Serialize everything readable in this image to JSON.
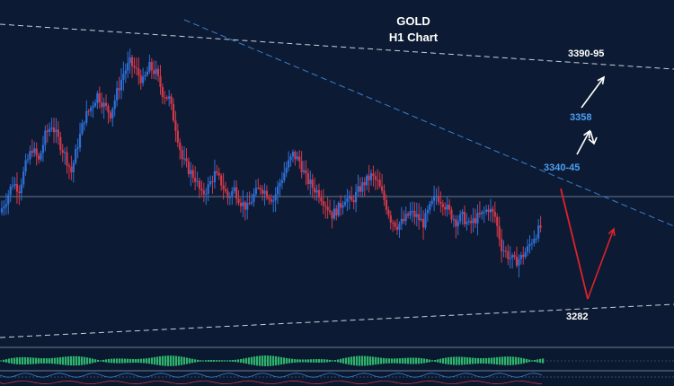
{
  "chart_data": {
    "type": "candlestick",
    "title": "GOLD",
    "subtitle": "H1 Chart",
    "colors": {
      "background": "#0c1b33",
      "bull_candle": "#2e6fd8",
      "bear_candle": "#d2384a",
      "wick": "#b9c4d6",
      "trendline_white": "#c8d0dc",
      "trendline_blue": "#3a7fd0",
      "arrow_up": "#ffffff",
      "arrow_projection": "#e0212a",
      "label_blue": "#4f9df2",
      "label_white": "#ffffff",
      "histogram": "#2db36b"
    },
    "price_levels": [
      {
        "label": "3390-95",
        "value": 3392.5,
        "color": "white"
      },
      {
        "label": "3358",
        "value": 3358,
        "color": "blue"
      },
      {
        "label": "3340-45",
        "value": 3342.5,
        "color": "blue"
      },
      {
        "label": "3282",
        "value": 3282,
        "color": "white"
      }
    ],
    "trendlines": [
      {
        "name": "upper-resistance",
        "style": "dashed",
        "color": "white"
      },
      {
        "name": "falling-resistance",
        "style": "dashed",
        "color": "blue"
      },
      {
        "name": "lower-support",
        "style": "dashed",
        "color": "white"
      },
      {
        "name": "current-price",
        "style": "solid",
        "color": "grey"
      }
    ],
    "close_path": [
      3330,
      3336,
      3344,
      3341,
      3352,
      3360,
      3354,
      3366,
      3371,
      3364,
      3357,
      3349,
      3362,
      3374,
      3379,
      3385,
      3380,
      3376,
      3386,
      3395,
      3400,
      3396,
      3391,
      3398,
      3395,
      3386,
      3383,
      3370,
      3355,
      3350,
      3346,
      3338,
      3342,
      3348,
      3344,
      3337,
      3341,
      3335,
      3332,
      3338,
      3342,
      3339,
      3336,
      3344,
      3351,
      3357,
      3354,
      3346,
      3342,
      3339,
      3334,
      3329,
      3332,
      3337,
      3335,
      3340,
      3344,
      3347,
      3344,
      3336,
      3327,
      3324,
      3326,
      3330,
      3328,
      3325,
      3332,
      3338,
      3335,
      3330,
      3326,
      3328,
      3324,
      3327,
      3329,
      3332,
      3328,
      3314,
      3310,
      3307,
      3309,
      3313,
      3319,
      3323
    ],
    "projection": {
      "from": 3326,
      "low": 3282,
      "to": 3310
    }
  }
}
